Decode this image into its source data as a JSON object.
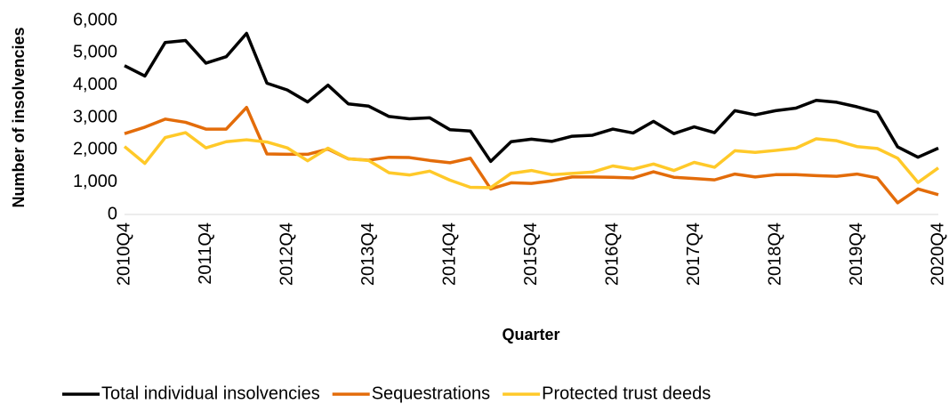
{
  "chart_data": {
    "type": "line",
    "x_label": "Quarter",
    "y_label": "Number of insolvencies",
    "categories": [
      "2010Q4",
      null,
      null,
      null,
      "2011Q4",
      null,
      null,
      null,
      "2012Q4",
      null,
      null,
      null,
      "2013Q4",
      null,
      null,
      null,
      "2014Q4",
      null,
      null,
      null,
      "2015Q4",
      null,
      null,
      null,
      "2016Q4",
      null,
      null,
      null,
      "2017Q4",
      null,
      null,
      null,
      "2018Q4",
      null,
      null,
      null,
      "2019Q4",
      null,
      null,
      null,
      "2020Q4"
    ],
    "series": [
      {
        "name": "Total individual insolvencies",
        "color": "#000000",
        "values": [
          4600,
          4280,
          5320,
          5380,
          4680,
          4880,
          5600,
          4060,
          3850,
          3480,
          4000,
          3420,
          3350,
          3030,
          2960,
          2990,
          2620,
          2580,
          1640,
          2250,
          2330,
          2260,
          2420,
          2450,
          2640,
          2520,
          2880,
          2500,
          2710,
          2530,
          3210,
          3080,
          3210,
          3290,
          3530,
          3470,
          3330,
          3160,
          2090,
          1770,
          2050
        ]
      },
      {
        "name": "Sequestrations",
        "color": "#e36c0a",
        "values": [
          2500,
          2700,
          2950,
          2850,
          2640,
          2640,
          3310,
          1870,
          1860,
          1860,
          2020,
          1720,
          1680,
          1770,
          1760,
          1670,
          1600,
          1740,
          790,
          980,
          960,
          1040,
          1160,
          1160,
          1150,
          1130,
          1320,
          1150,
          1110,
          1070,
          1250,
          1160,
          1230,
          1230,
          1200,
          1180,
          1250,
          1130,
          360,
          790,
          610
        ]
      },
      {
        "name": "Protected trust deeds",
        "color": "#ffc929",
        "values": [
          2100,
          1580,
          2380,
          2530,
          2060,
          2250,
          2310,
          2240,
          2060,
          1660,
          2050,
          1720,
          1670,
          1290,
          1220,
          1340,
          1060,
          840,
          830,
          1270,
          1360,
          1230,
          1270,
          1310,
          1500,
          1400,
          1560,
          1360,
          1610,
          1460,
          1970,
          1920,
          1980,
          2050,
          2340,
          2280,
          2100,
          2040,
          1740,
          990,
          1440
        ]
      }
    ],
    "ylim": [
      0,
      6000
    ],
    "yticks": [
      0,
      {
        "value": 1000,
        "label": "1,000"
      },
      {
        "value": 2000,
        "label": "2,000"
      },
      {
        "value": 3000,
        "label": "3,000"
      },
      {
        "value": 4000,
        "label": "4,000"
      },
      {
        "value": 5000,
        "label": "5,000"
      },
      {
        "value": 6000,
        "label": "6,000"
      }
    ],
    "legend": "bottom",
    "grid": false
  }
}
